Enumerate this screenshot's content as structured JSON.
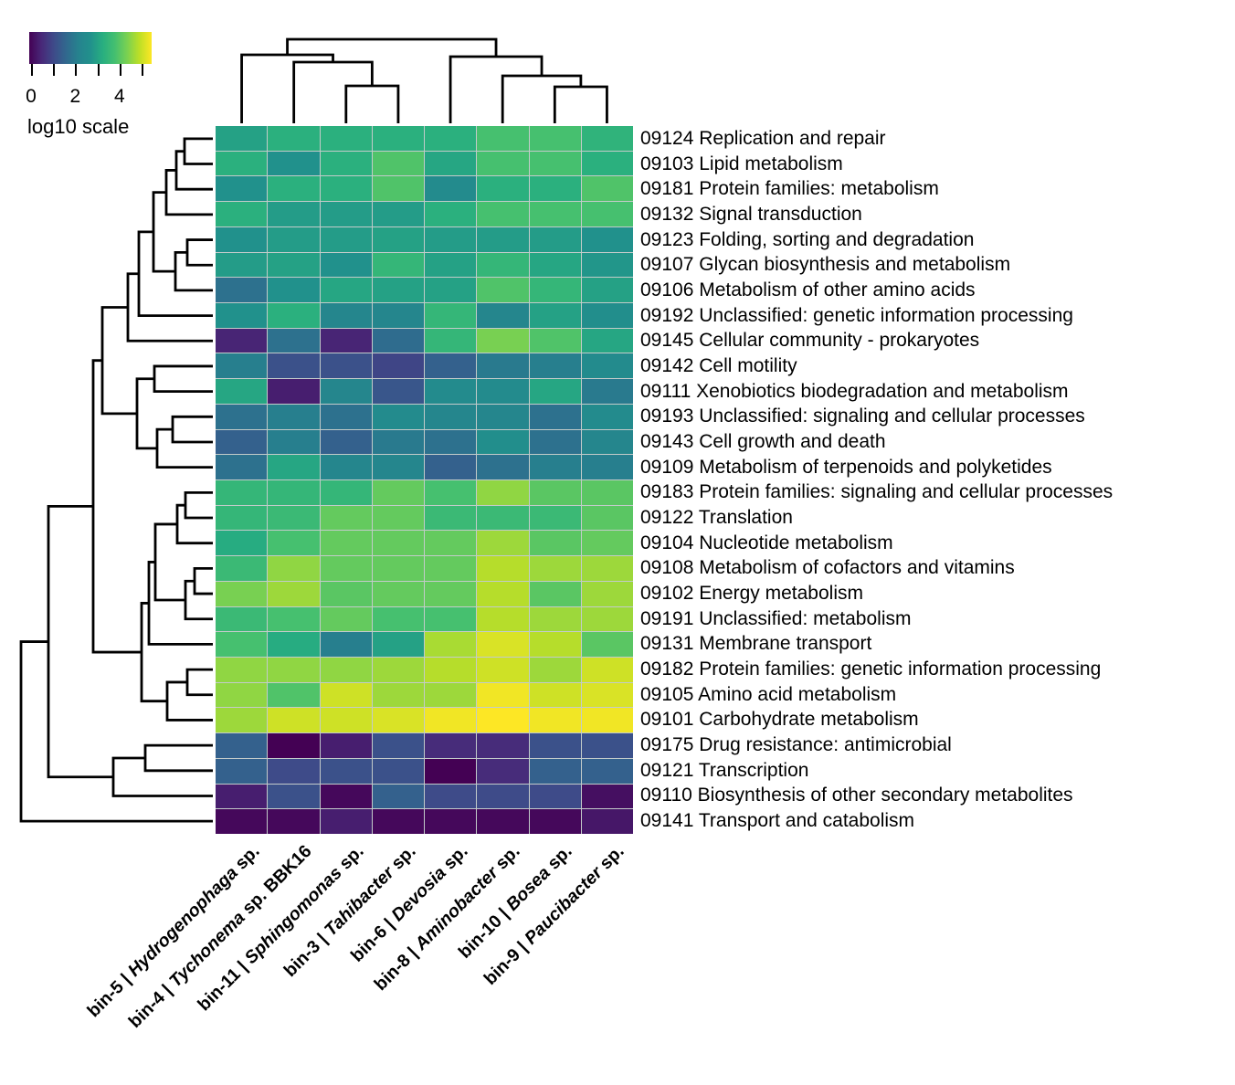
{
  "legend": {
    "title": "log10 scale",
    "ticks": [
      {
        "value": 0,
        "label": "0"
      },
      {
        "value": 1,
        "label": ""
      },
      {
        "value": 2,
        "label": "2"
      },
      {
        "value": 3,
        "label": ""
      },
      {
        "value": 4,
        "label": "4"
      },
      {
        "value": 5,
        "label": ""
      }
    ]
  },
  "colormap": {
    "name": "viridis",
    "stops": [
      "#440154",
      "#482878",
      "#3e4a89",
      "#31688e",
      "#26828e",
      "#21918c",
      "#28ae80",
      "#44bf70",
      "#7ad151",
      "#bddf26",
      "#fde725"
    ],
    "domain": [
      0,
      5.4
    ]
  },
  "chart_data": {
    "type": "heatmap",
    "scale_label": "log10 scale",
    "vmin": 0,
    "vmax": 5.4,
    "rows": [
      "09124 Replication and repair",
      "09103 Lipid metabolism",
      "09181 Protein families: metabolism",
      "09132 Signal transduction",
      "09123 Folding, sorting and degradation",
      "09107 Glycan biosynthesis and metabolism",
      "09106 Metabolism of other amino acids",
      "09192 Unclassified: genetic information processing",
      "09145 Cellular community - prokaryotes",
      "09142 Cell motility",
      "09111 Xenobiotics biodegradation and metabolism",
      "09193 Unclassified: signaling and cellular processes",
      "09143 Cell growth and death",
      "09109 Metabolism of terpenoids and polyketides",
      "09183 Protein families: signaling and cellular processes",
      "09122 Translation",
      "09104 Nucleotide metabolism",
      "09108 Metabolism of cofactors and vitamins",
      "09102 Energy metabolism",
      "09191 Unclassified: metabolism",
      "09131 Membrane transport",
      "09182 Protein families: genetic information processing",
      "09105 Amino acid metabolism",
      "09101 Carbohydrate metabolism",
      "09175 Drug resistance: antimicrobial",
      "09121 Transcription",
      "09110 Biosynthesis of other secondary metabolites",
      "09141 Transport and catabolism"
    ],
    "columns": [
      {
        "prefix": "bin-5",
        "genus": "Hydrogenophaga",
        "suffix": "sp."
      },
      {
        "prefix": "bin-4",
        "genus": "Tychonema",
        "suffix": "sp. BBK16"
      },
      {
        "prefix": "bin-11",
        "genus": "Sphingomonas",
        "suffix": "sp."
      },
      {
        "prefix": "bin-3",
        "genus": "Tahibacter",
        "suffix": "sp."
      },
      {
        "prefix": "bin-6",
        "genus": "Devosia",
        "suffix": "sp."
      },
      {
        "prefix": "bin-8",
        "genus": "Aminobacter",
        "suffix": "sp."
      },
      {
        "prefix": "bin-10",
        "genus": "Bosea",
        "suffix": "sp."
      },
      {
        "prefix": "bin-9",
        "genus": "Paucibacter",
        "suffix": "sp."
      }
    ],
    "values": [
      [
        3.0,
        3.3,
        3.3,
        3.3,
        3.3,
        3.8,
        3.8,
        3.4
      ],
      [
        3.3,
        2.7,
        3.3,
        3.9,
        3.1,
        3.8,
        3.8,
        3.3
      ],
      [
        2.7,
        3.3,
        3.3,
        3.9,
        2.5,
        3.3,
        3.3,
        3.9
      ],
      [
        3.3,
        2.9,
        2.9,
        2.9,
        3.3,
        3.8,
        3.8,
        3.8
      ],
      [
        2.7,
        2.9,
        2.9,
        3.0,
        2.9,
        2.9,
        2.9,
        2.7
      ],
      [
        2.9,
        3.0,
        2.7,
        3.5,
        3.0,
        3.5,
        3.1,
        2.8
      ],
      [
        1.8,
        2.7,
        3.1,
        3.0,
        3.0,
        3.9,
        3.5,
        3.0
      ],
      [
        2.7,
        3.3,
        2.3,
        2.3,
        3.5,
        2.3,
        3.0,
        2.6
      ],
      [
        0.5,
        1.8,
        0.5,
        1.7,
        3.5,
        4.3,
        3.9,
        3.1
      ],
      [
        2.1,
        1.2,
        1.2,
        1.0,
        1.5,
        2.0,
        2.1,
        2.5
      ],
      [
        3.1,
        0.4,
        2.3,
        1.3,
        2.5,
        2.5,
        3.1,
        2.0
      ],
      [
        1.8,
        2.1,
        1.8,
        2.5,
        2.3,
        2.3,
        1.8,
        2.5
      ],
      [
        1.5,
        2.1,
        1.5,
        2.0,
        1.8,
        2.6,
        1.8,
        2.3
      ],
      [
        1.8,
        3.1,
        2.3,
        2.3,
        1.5,
        1.8,
        2.1,
        2.1
      ],
      [
        3.5,
        3.5,
        3.5,
        4.1,
        3.8,
        4.5,
        4.0,
        4.0
      ],
      [
        3.5,
        3.6,
        4.1,
        4.1,
        3.6,
        3.6,
        3.6,
        4.0
      ],
      [
        3.2,
        3.8,
        4.1,
        4.1,
        4.1,
        4.6,
        4.0,
        4.1
      ],
      [
        3.6,
        4.5,
        4.1,
        4.1,
        4.1,
        4.8,
        4.6,
        4.6
      ],
      [
        4.3,
        4.6,
        4.0,
        4.1,
        4.1,
        4.8,
        4.0,
        4.6
      ],
      [
        3.6,
        3.8,
        4.1,
        3.8,
        3.8,
        4.8,
        4.6,
        4.6
      ],
      [
        3.8,
        3.2,
        2.1,
        3.0,
        4.7,
        5.1,
        4.8,
        4.0
      ],
      [
        4.5,
        4.5,
        4.5,
        4.6,
        4.8,
        5.0,
        4.6,
        5.0
      ],
      [
        4.5,
        3.9,
        5.0,
        4.6,
        4.6,
        5.3,
        5.0,
        5.1
      ],
      [
        4.6,
        5.0,
        5.0,
        5.1,
        5.3,
        5.4,
        5.3,
        5.3
      ],
      [
        1.5,
        0.0,
        0.4,
        1.2,
        0.6,
        0.6,
        1.2,
        1.2
      ],
      [
        1.5,
        1.1,
        1.2,
        1.2,
        0.0,
        0.6,
        1.5,
        1.5
      ],
      [
        0.4,
        1.2,
        0.1,
        1.5,
        1.1,
        1.1,
        1.1,
        0.2
      ],
      [
        0.1,
        0.1,
        0.4,
        0.1,
        0.1,
        0.1,
        0.1,
        0.3
      ]
    ],
    "row_dendrogram": {
      "merges": [
        [
          "r1",
          "r2",
          202
        ],
        [
          "m1",
          "r3",
          193
        ],
        [
          "m2",
          "r4",
          182
        ],
        [
          "r5",
          "r6",
          205
        ],
        [
          "m4",
          "r7",
          192
        ],
        [
          "m3",
          "m5",
          168
        ],
        [
          "m6",
          "r8",
          152
        ],
        [
          "m7",
          "r9",
          140
        ],
        [
          "r10",
          "r11",
          169
        ],
        [
          "r12",
          "r13",
          189
        ],
        [
          "m10",
          "r14",
          172
        ],
        [
          "m9",
          "m11",
          150
        ],
        [
          "m8",
          "m12",
          112
        ],
        [
          "r15",
          "r16",
          203
        ],
        [
          "m14",
          "r17",
          194
        ],
        [
          "r18",
          "r19",
          213
        ],
        [
          "m16",
          "r20",
          203
        ],
        [
          "m15",
          "m17",
          170
        ],
        [
          "m18",
          "r21",
          163
        ],
        [
          "r22",
          "r23",
          205
        ],
        [
          "m20",
          "r24",
          183
        ],
        [
          "m19",
          "m21",
          155
        ],
        [
          "m13",
          "m22",
          102
        ],
        [
          "r25",
          "r26",
          159
        ],
        [
          "m24",
          "r27",
          124
        ],
        [
          "m23",
          "m25",
          53
        ],
        [
          "m26",
          "r28",
          23
        ]
      ]
    },
    "col_dendrogram": {
      "merges": [
        [
          "c3",
          "c4",
          94
        ],
        [
          "c2",
          "m1",
          68
        ],
        [
          "c1",
          "m2",
          60
        ],
        [
          "c7",
          "c8",
          95
        ],
        [
          "c6",
          "m4",
          83
        ],
        [
          "c5",
          "m5",
          62
        ],
        [
          "m3",
          "m6",
          43
        ]
      ]
    }
  }
}
